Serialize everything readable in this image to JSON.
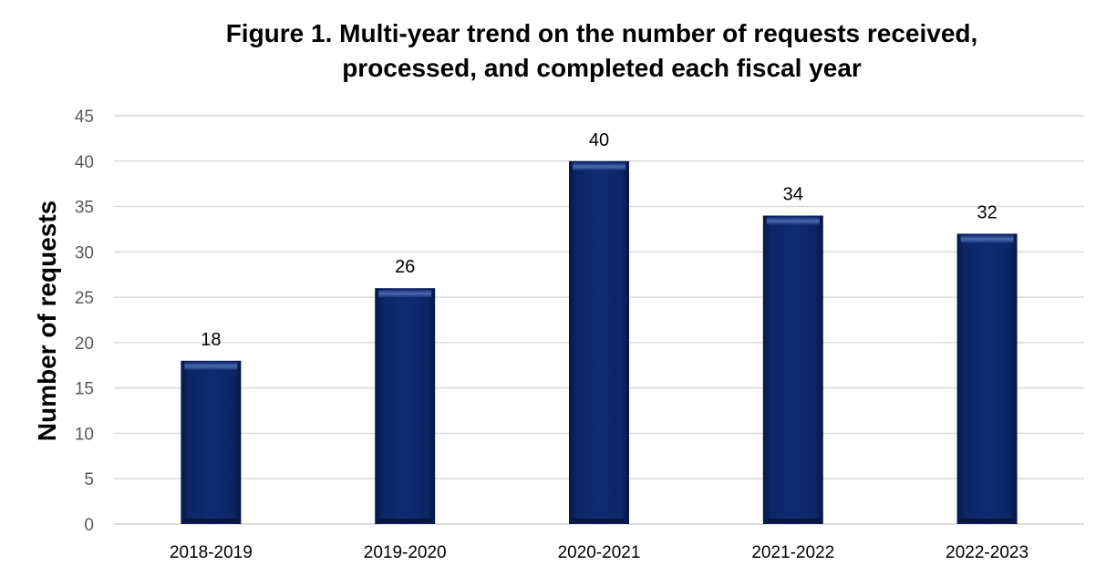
{
  "chart_data": {
    "type": "bar",
    "title": "Figure 1. Multi-year trend on the number of requests received, processed, and completed each fiscal year",
    "title_lines": [
      "Figure 1. Multi-year trend on the number of requests received,",
      "processed, and completed each fiscal year"
    ],
    "xlabel": "",
    "ylabel": "Number of requests",
    "categories": [
      "2018-2019",
      "2019-2020",
      "2020-2021",
      "2021-2022",
      "2022-2023"
    ],
    "values": [
      18,
      26,
      40,
      34,
      32
    ],
    "data_labels": [
      "18",
      "26",
      "40",
      "34",
      "32"
    ],
    "ylim": [
      0,
      45
    ],
    "y_ticks": [
      0,
      5,
      10,
      15,
      20,
      25,
      30,
      35,
      40,
      45
    ],
    "grid": true,
    "legend": "none",
    "colors": {
      "bar": "#0d2566",
      "bar_dark": "#071642",
      "bar_highlight": "#3f5fa6",
      "grid": "#d9d9d9",
      "axis": "#d9d9d9"
    }
  }
}
